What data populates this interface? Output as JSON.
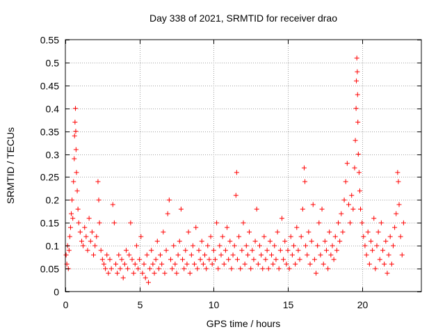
{
  "chart_data": {
    "type": "scatter",
    "title": "Day 338 of 2021, SRMTID for receiver drao",
    "xlabel": "GPS time / hours",
    "ylabel": "SRMTID / TECUs",
    "xlim": [
      0,
      24
    ],
    "ylim": [
      0,
      0.55
    ],
    "xticks": [
      0,
      5,
      10,
      15,
      20
    ],
    "xtick_labels": [
      "0",
      "5",
      "10",
      "15",
      "20"
    ],
    "yticks": [
      0,
      0.05,
      0.1,
      0.15,
      0.2,
      0.25,
      0.3,
      0.35,
      0.4,
      0.45,
      0.5,
      0.55
    ],
    "ytick_labels": [
      "0",
      "0.05",
      "0.1",
      "0.15",
      "0.2",
      "0.25",
      "0.3",
      "0.35",
      "0.4",
      "0.45",
      "0.5",
      "0.55"
    ],
    "grid": true,
    "legend": "none",
    "marker": "+",
    "color": "#ff0000",
    "series": [
      {
        "name": "SRMTID",
        "points": [
          [
            0.05,
            0.08
          ],
          [
            0.1,
            0.06
          ],
          [
            0.15,
            0.1
          ],
          [
            0.2,
            0.05
          ],
          [
            0.25,
            0.09
          ],
          [
            0.3,
            0.12
          ],
          [
            0.35,
            0.14
          ],
          [
            0.4,
            0.17
          ],
          [
            0.45,
            0.2
          ],
          [
            0.5,
            0.16
          ],
          [
            0.55,
            0.24
          ],
          [
            0.6,
            0.29
          ],
          [
            0.62,
            0.34
          ],
          [
            0.65,
            0.37
          ],
          [
            0.68,
            0.4
          ],
          [
            0.7,
            0.35
          ],
          [
            0.72,
            0.31
          ],
          [
            0.75,
            0.26
          ],
          [
            0.8,
            0.22
          ],
          [
            0.85,
            0.18
          ],
          [
            0.9,
            0.15
          ],
          [
            1.0,
            0.13
          ],
          [
            1.1,
            0.11
          ],
          [
            1.2,
            0.1
          ],
          [
            1.3,
            0.14
          ],
          [
            1.4,
            0.12
          ],
          [
            1.5,
            0.09
          ],
          [
            1.6,
            0.16
          ],
          [
            1.7,
            0.11
          ],
          [
            1.8,
            0.13
          ],
          [
            1.9,
            0.08
          ],
          [
            2.0,
            0.1
          ],
          [
            2.1,
            0.12
          ],
          [
            2.2,
            0.24
          ],
          [
            2.25,
            0.2
          ],
          [
            2.3,
            0.15
          ],
          [
            2.4,
            0.09
          ],
          [
            2.5,
            0.07
          ],
          [
            2.6,
            0.06
          ],
          [
            2.7,
            0.05
          ],
          [
            2.8,
            0.08
          ],
          [
            2.9,
            0.04
          ],
          [
            3.0,
            0.07
          ],
          [
            3.1,
            0.05
          ],
          [
            3.2,
            0.19
          ],
          [
            3.3,
            0.15
          ],
          [
            3.4,
            0.06
          ],
          [
            3.5,
            0.04
          ],
          [
            3.6,
            0.08
          ],
          [
            3.7,
            0.05
          ],
          [
            3.8,
            0.07
          ],
          [
            3.9,
            0.03
          ],
          [
            4.0,
            0.06
          ],
          [
            4.1,
            0.09
          ],
          [
            4.2,
            0.05
          ],
          [
            4.3,
            0.08
          ],
          [
            4.4,
            0.15
          ],
          [
            4.5,
            0.07
          ],
          [
            4.6,
            0.04
          ],
          [
            4.7,
            0.06
          ],
          [
            4.8,
            0.1
          ],
          [
            4.9,
            0.05
          ],
          [
            5.0,
            0.07
          ],
          [
            5.1,
            0.12
          ],
          [
            5.2,
            0.04
          ],
          [
            5.3,
            0.06
          ],
          [
            5.4,
            0.03
          ],
          [
            5.5,
            0.08
          ],
          [
            5.6,
            0.02
          ],
          [
            5.7,
            0.05
          ],
          [
            5.8,
            0.09
          ],
          [
            5.9,
            0.06
          ],
          [
            6.0,
            0.04
          ],
          [
            6.1,
            0.07
          ],
          [
            6.2,
            0.11
          ],
          [
            6.3,
            0.05
          ],
          [
            6.4,
            0.08
          ],
          [
            6.5,
            0.06
          ],
          [
            6.6,
            0.13
          ],
          [
            6.7,
            0.04
          ],
          [
            6.8,
            0.09
          ],
          [
            6.9,
            0.17
          ],
          [
            7.0,
            0.2
          ],
          [
            7.1,
            0.07
          ],
          [
            7.2,
            0.05
          ],
          [
            7.3,
            0.1
          ],
          [
            7.4,
            0.06
          ],
          [
            7.5,
            0.04
          ],
          [
            7.6,
            0.08
          ],
          [
            7.7,
            0.11
          ],
          [
            7.8,
            0.18
          ],
          [
            7.9,
            0.07
          ],
          [
            8.0,
            0.05
          ],
          [
            8.1,
            0.09
          ],
          [
            8.2,
            0.06
          ],
          [
            8.3,
            0.13
          ],
          [
            8.4,
            0.04
          ],
          [
            8.5,
            0.08
          ],
          [
            8.6,
            0.1
          ],
          [
            8.7,
            0.06
          ],
          [
            8.8,
            0.14
          ],
          [
            8.9,
            0.05
          ],
          [
            9.0,
            0.09
          ],
          [
            9.1,
            0.07
          ],
          [
            9.2,
            0.11
          ],
          [
            9.3,
            0.06
          ],
          [
            9.4,
            0.08
          ],
          [
            9.5,
            0.05
          ],
          [
            9.6,
            0.1
          ],
          [
            9.7,
            0.07
          ],
          [
            9.8,
            0.12
          ],
          [
            9.9,
            0.06
          ],
          [
            10.0,
            0.09
          ],
          [
            10.1,
            0.07
          ],
          [
            10.2,
            0.15
          ],
          [
            10.3,
            0.05
          ],
          [
            10.4,
            0.1
          ],
          [
            10.5,
            0.08
          ],
          [
            10.6,
            0.12
          ],
          [
            10.7,
            0.06
          ],
          [
            10.8,
            0.09
          ],
          [
            10.9,
            0.14
          ],
          [
            11.0,
            0.07
          ],
          [
            11.1,
            0.11
          ],
          [
            11.2,
            0.05
          ],
          [
            11.3,
            0.08
          ],
          [
            11.4,
            0.1
          ],
          [
            11.5,
            0.21
          ],
          [
            11.55,
            0.26
          ],
          [
            11.6,
            0.07
          ],
          [
            11.7,
            0.12
          ],
          [
            11.8,
            0.05
          ],
          [
            11.9,
            0.09
          ],
          [
            12.0,
            0.15
          ],
          [
            12.1,
            0.06
          ],
          [
            12.2,
            0.1
          ],
          [
            12.3,
            0.08
          ],
          [
            12.4,
            0.13
          ],
          [
            12.5,
            0.05
          ],
          [
            12.6,
            0.09
          ],
          [
            12.7,
            0.07
          ],
          [
            12.8,
            0.11
          ],
          [
            12.9,
            0.18
          ],
          [
            13.0,
            0.06
          ],
          [
            13.1,
            0.1
          ],
          [
            13.2,
            0.08
          ],
          [
            13.3,
            0.05
          ],
          [
            13.4,
            0.12
          ],
          [
            13.5,
            0.07
          ],
          [
            13.6,
            0.09
          ],
          [
            13.7,
            0.05
          ],
          [
            13.8,
            0.11
          ],
          [
            13.9,
            0.08
          ],
          [
            14.0,
            0.06
          ],
          [
            14.1,
            0.1
          ],
          [
            14.2,
            0.07
          ],
          [
            14.3,
            0.13
          ],
          [
            14.4,
            0.05
          ],
          [
            14.5,
            0.09
          ],
          [
            14.6,
            0.16
          ],
          [
            14.7,
            0.07
          ],
          [
            14.8,
            0.11
          ],
          [
            14.9,
            0.06
          ],
          [
            15.0,
            0.09
          ],
          [
            15.1,
            0.05
          ],
          [
            15.2,
            0.12
          ],
          [
            15.3,
            0.08
          ],
          [
            15.4,
            0.1
          ],
          [
            15.5,
            0.06
          ],
          [
            15.6,
            0.14
          ],
          [
            15.7,
            0.09
          ],
          [
            15.8,
            0.07
          ],
          [
            15.9,
            0.12
          ],
          [
            16.0,
            0.18
          ],
          [
            16.1,
            0.27
          ],
          [
            16.15,
            0.24
          ],
          [
            16.2,
            0.1
          ],
          [
            16.3,
            0.08
          ],
          [
            16.4,
            0.13
          ],
          [
            16.5,
            0.06
          ],
          [
            16.6,
            0.11
          ],
          [
            16.7,
            0.19
          ],
          [
            16.8,
            0.07
          ],
          [
            16.9,
            0.04
          ],
          [
            17.0,
            0.1
          ],
          [
            17.1,
            0.15
          ],
          [
            17.2,
            0.08
          ],
          [
            17.3,
            0.18
          ],
          [
            17.4,
            0.06
          ],
          [
            17.5,
            0.11
          ],
          [
            17.6,
            0.09
          ],
          [
            17.7,
            0.05
          ],
          [
            17.8,
            0.13
          ],
          [
            17.9,
            0.08
          ],
          [
            18.0,
            0.1
          ],
          [
            18.1,
            0.07
          ],
          [
            18.2,
            0.12
          ],
          [
            18.3,
            0.09
          ],
          [
            18.4,
            0.15
          ],
          [
            18.5,
            0.11
          ],
          [
            18.6,
            0.17
          ],
          [
            18.7,
            0.13
          ],
          [
            18.8,
            0.2
          ],
          [
            18.9,
            0.24
          ],
          [
            19.0,
            0.28
          ],
          [
            19.1,
            0.19
          ],
          [
            19.2,
            0.15
          ],
          [
            19.3,
            0.21
          ],
          [
            19.4,
            0.18
          ],
          [
            19.5,
            0.27
          ],
          [
            19.55,
            0.33
          ],
          [
            19.6,
            0.4
          ],
          [
            19.62,
            0.46
          ],
          [
            19.65,
            0.51
          ],
          [
            19.68,
            0.48
          ],
          [
            19.7,
            0.43
          ],
          [
            19.72,
            0.37
          ],
          [
            19.75,
            0.3
          ],
          [
            19.8,
            0.26
          ],
          [
            19.85,
            0.22
          ],
          [
            19.9,
            0.18
          ],
          [
            20.0,
            0.15
          ],
          [
            20.1,
            0.12
          ],
          [
            20.2,
            0.1
          ],
          [
            20.3,
            0.08
          ],
          [
            20.4,
            0.13
          ],
          [
            20.5,
            0.06
          ],
          [
            20.6,
            0.11
          ],
          [
            20.7,
            0.09
          ],
          [
            20.8,
            0.16
          ],
          [
            20.9,
            0.05
          ],
          [
            21.0,
            0.1
          ],
          [
            21.1,
            0.13
          ],
          [
            21.2,
            0.07
          ],
          [
            21.3,
            0.15
          ],
          [
            21.4,
            0.09
          ],
          [
            21.5,
            0.06
          ],
          [
            21.6,
            0.11
          ],
          [
            21.7,
            0.04
          ],
          [
            21.8,
            0.08
          ],
          [
            21.9,
            0.12
          ],
          [
            22.0,
            0.06
          ],
          [
            22.1,
            0.1
          ],
          [
            22.2,
            0.14
          ],
          [
            22.3,
            0.17
          ],
          [
            22.4,
            0.26
          ],
          [
            22.45,
            0.24
          ],
          [
            22.5,
            0.19
          ],
          [
            22.6,
            0.12
          ],
          [
            22.7,
            0.08
          ],
          [
            22.8,
            0.15
          ]
        ]
      }
    ]
  }
}
